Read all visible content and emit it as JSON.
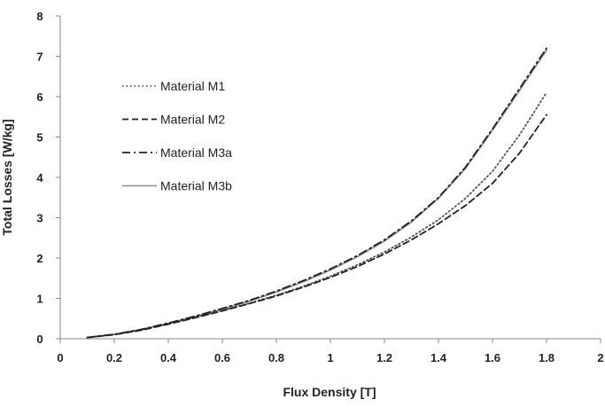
{
  "chart_data": {
    "type": "line",
    "xlabel": "Flux Density [T]",
    "ylabel": "Total Losses [W/kg]",
    "xlim": [
      0,
      2
    ],
    "ylim": [
      0,
      8
    ],
    "xticks": [
      "0",
      "0.2",
      "0.4",
      "0.6",
      "0.8",
      "1",
      "1.2",
      "1.4",
      "1.6",
      "1.8",
      "2"
    ],
    "yticks": [
      "0",
      "1",
      "2",
      "3",
      "4",
      "5",
      "6",
      "7",
      "8"
    ],
    "grid": false,
    "legend_position": "upper-left",
    "x": [
      0.1,
      0.2,
      0.3,
      0.4,
      0.5,
      0.6,
      0.7,
      0.8,
      0.9,
      1.0,
      1.1,
      1.2,
      1.3,
      1.4,
      1.5,
      1.6,
      1.7,
      1.8
    ],
    "series": [
      {
        "name": "Material M1",
        "style": "dotted",
        "color": "#555555",
        "values": [
          0.03,
          0.1,
          0.22,
          0.37,
          0.53,
          0.7,
          0.88,
          1.08,
          1.3,
          1.55,
          1.83,
          2.15,
          2.52,
          2.95,
          3.48,
          4.15,
          5.05,
          6.1
        ]
      },
      {
        "name": "Material M2",
        "style": "dashed",
        "color": "#222222",
        "values": [
          0.03,
          0.1,
          0.21,
          0.36,
          0.52,
          0.69,
          0.87,
          1.06,
          1.28,
          1.52,
          1.79,
          2.1,
          2.45,
          2.85,
          3.3,
          3.85,
          4.6,
          5.55
        ]
      },
      {
        "name": "Material M3a",
        "style": "dashdot",
        "color": "#222222",
        "values": [
          0.03,
          0.11,
          0.23,
          0.39,
          0.56,
          0.75,
          0.95,
          1.18,
          1.44,
          1.73,
          2.06,
          2.45,
          2.92,
          3.5,
          4.25,
          5.2,
          6.2,
          7.2
        ]
      },
      {
        "name": "Material M3b",
        "style": "solid",
        "color": "#8a8a8a",
        "values": [
          0.03,
          0.11,
          0.23,
          0.38,
          0.55,
          0.73,
          0.93,
          1.16,
          1.41,
          1.7,
          2.03,
          2.42,
          2.89,
          3.48,
          4.22,
          5.17,
          6.15,
          7.15
        ]
      }
    ]
  }
}
